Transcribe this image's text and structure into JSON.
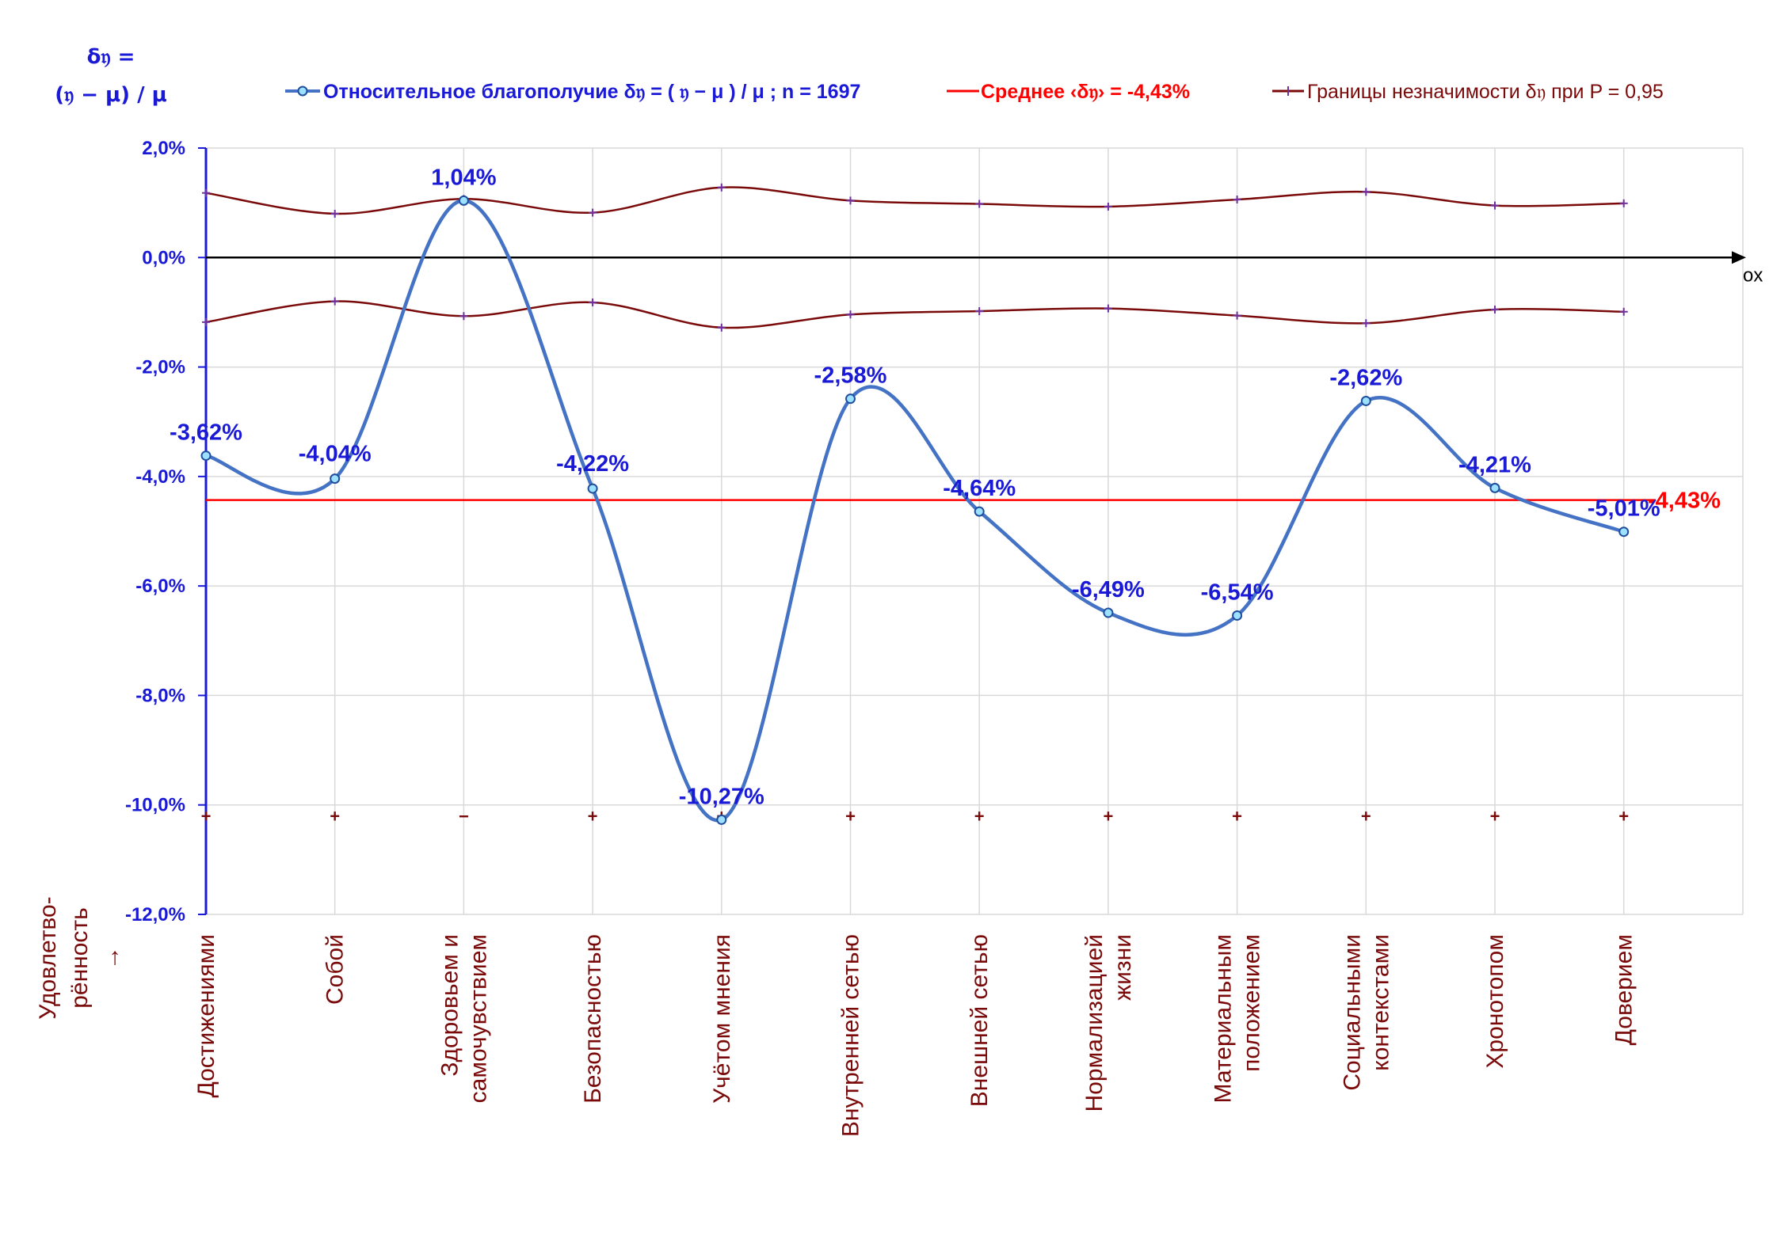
{
  "chart_data": {
    "type": "line",
    "ylabel_line1": "δ𝔶 =",
    "ylabel_line2": "(𝔶 − μ) / μ",
    "xlabel": "Удовлетво-рённость →",
    "xlabel_lines": [
      "Удовлетво-",
      "рённость",
      "→"
    ],
    "x_axis_name": "ox",
    "ylim": [
      -12,
      2
    ],
    "yticks": [
      2,
      0,
      -2,
      -4,
      -6,
      -8,
      -10,
      -12
    ],
    "ytick_labels": [
      "2,0%",
      "0,0%",
      "-2,0%",
      "-4,0%",
      "-6,0%",
      "-8,0%",
      "-10,0%",
      "-12,0%"
    ],
    "categories": [
      [
        "Достижениями"
      ],
      [
        "Собой"
      ],
      [
        "Здоровьем и",
        "самочувствием"
      ],
      [
        "Безопасностью"
      ],
      [
        "Учётом мнения"
      ],
      [
        "Внутренней сетью"
      ],
      [
        "Внешней сетью"
      ],
      [
        "Нормализацией",
        "жизни"
      ],
      [
        "Материальным",
        "положением"
      ],
      [
        "Социальными",
        "контекстами"
      ],
      [
        "Хронотопом"
      ],
      [
        "Доверием"
      ]
    ],
    "grid": true,
    "legend_position": "top",
    "series": [
      {
        "name": "Относительное благополучие δ𝔶 = ( 𝔶 − μ ) / μ ; n = 1697",
        "color": "#4472c4",
        "values": [
          -3.62,
          -4.04,
          1.04,
          -4.22,
          -10.27,
          -2.58,
          -4.64,
          -6.49,
          -6.54,
          -2.62,
          -4.21,
          -5.01
        ],
        "labels": [
          "-3,62%",
          "-4,04%",
          "1,04%",
          "-4,22%",
          "-10,27%",
          "-2,58%",
          "-4,64%",
          "-6,49%",
          "-6,54%",
          "-2,62%",
          "-4,21%",
          "-5,01%"
        ]
      },
      {
        "name": "Среднее ‹δ𝔶› = -4,43%",
        "color": "#ff0000",
        "value": -4.43,
        "label": "-4,43%"
      },
      {
        "name": "Границы незначимости δ𝔶 при P = 0,95",
        "color": "#7a0a0a",
        "upper": [
          1.18,
          0.8,
          1.07,
          0.82,
          1.28,
          1.04,
          0.98,
          0.93,
          1.06,
          1.2,
          0.95,
          0.99
        ],
        "lower": [
          -1.18,
          -0.8,
          -1.07,
          -0.82,
          -1.28,
          -1.04,
          -0.98,
          -0.93,
          -1.06,
          -1.2,
          -0.95,
          -0.99
        ]
      }
    ],
    "sign_markers": [
      "+",
      "+",
      "−",
      "+",
      "+",
      "+",
      "+",
      "+",
      "+",
      "+",
      "+",
      "+"
    ],
    "sign_marker_level": -10.2
  }
}
